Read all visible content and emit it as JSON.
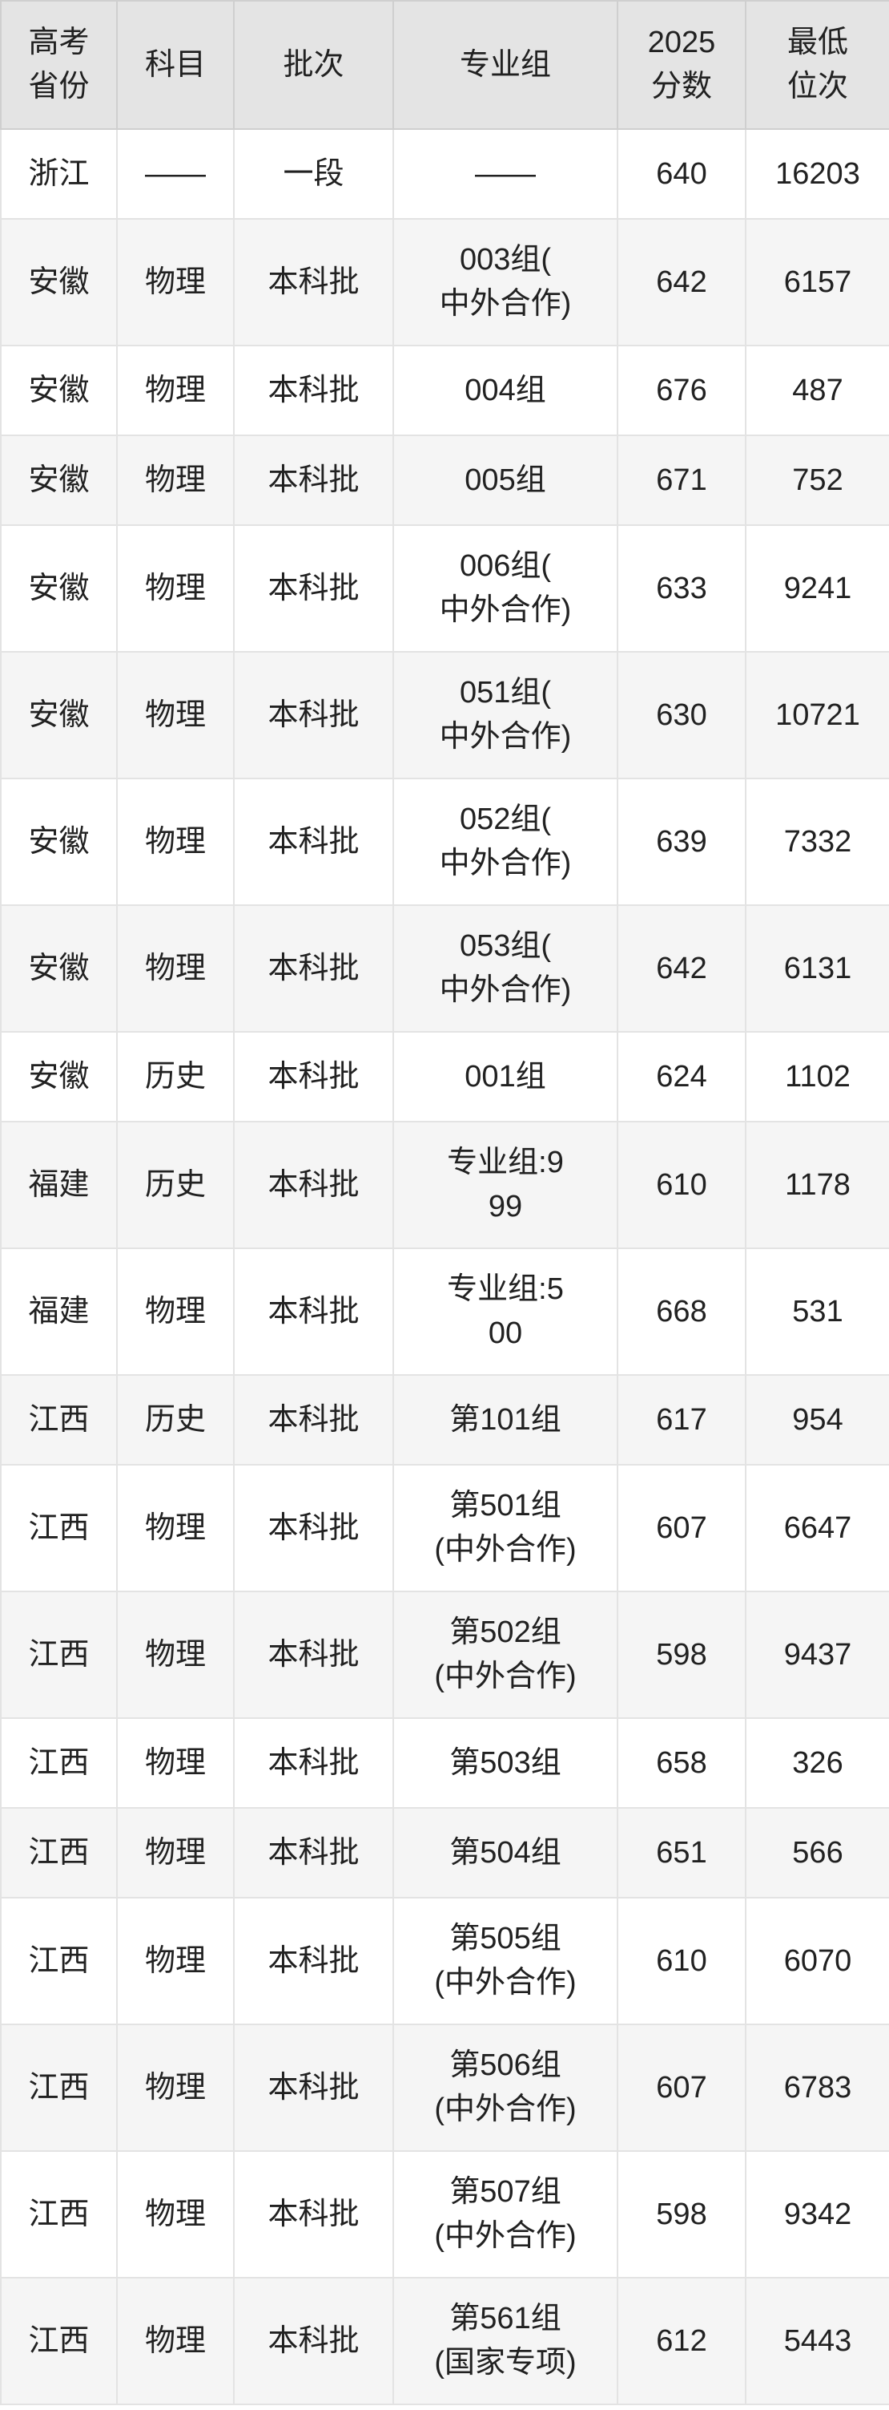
{
  "chart_data": {
    "type": "table",
    "columns": [
      "高考\n省份",
      "科目",
      "批次",
      "专业组",
      "2025\n分数",
      "最低\n位次"
    ],
    "rows": [
      [
        "浙江",
        "——",
        "一段",
        "——",
        "640",
        "16203"
      ],
      [
        "安徽",
        "物理",
        "本科批",
        "003组(\n中外合作)",
        "642",
        "6157"
      ],
      [
        "安徽",
        "物理",
        "本科批",
        "004组",
        "676",
        "487"
      ],
      [
        "安徽",
        "物理",
        "本科批",
        "005组",
        "671",
        "752"
      ],
      [
        "安徽",
        "物理",
        "本科批",
        "006组(\n中外合作)",
        "633",
        "9241"
      ],
      [
        "安徽",
        "物理",
        "本科批",
        "051组(\n中外合作)",
        "630",
        "10721"
      ],
      [
        "安徽",
        "物理",
        "本科批",
        "052组(\n中外合作)",
        "639",
        "7332"
      ],
      [
        "安徽",
        "物理",
        "本科批",
        "053组(\n中外合作)",
        "642",
        "6131"
      ],
      [
        "安徽",
        "历史",
        "本科批",
        "001组",
        "624",
        "1102"
      ],
      [
        "福建",
        "历史",
        "本科批",
        "专业组:9\n99",
        "610",
        "1178"
      ],
      [
        "福建",
        "物理",
        "本科批",
        "专业组:5\n00",
        "668",
        "531"
      ],
      [
        "江西",
        "历史",
        "本科批",
        "第101组",
        "617",
        "954"
      ],
      [
        "江西",
        "物理",
        "本科批",
        "第501组\n(中外合作)",
        "607",
        "6647"
      ],
      [
        "江西",
        "物理",
        "本科批",
        "第502组\n(中外合作)",
        "598",
        "9437"
      ],
      [
        "江西",
        "物理",
        "本科批",
        "第503组",
        "658",
        "326"
      ],
      [
        "江西",
        "物理",
        "本科批",
        "第504组",
        "651",
        "566"
      ],
      [
        "江西",
        "物理",
        "本科批",
        "第505组\n(中外合作)",
        "610",
        "6070"
      ],
      [
        "江西",
        "物理",
        "本科批",
        "第506组\n(中外合作)",
        "607",
        "6783"
      ],
      [
        "江西",
        "物理",
        "本科批",
        "第507组\n(中外合作)",
        "598",
        "9342"
      ],
      [
        "江西",
        "物理",
        "本科批",
        "第561组\n(国家专项)",
        "612",
        "5443"
      ]
    ],
    "layout": {
      "grid": "on",
      "header_background": "#e4e4e4",
      "alt_row_background": "#f5f5f5",
      "border_color": "#e3e3e3",
      "header_border_color": "#cfcfcf",
      "text_color": "#212121"
    }
  }
}
